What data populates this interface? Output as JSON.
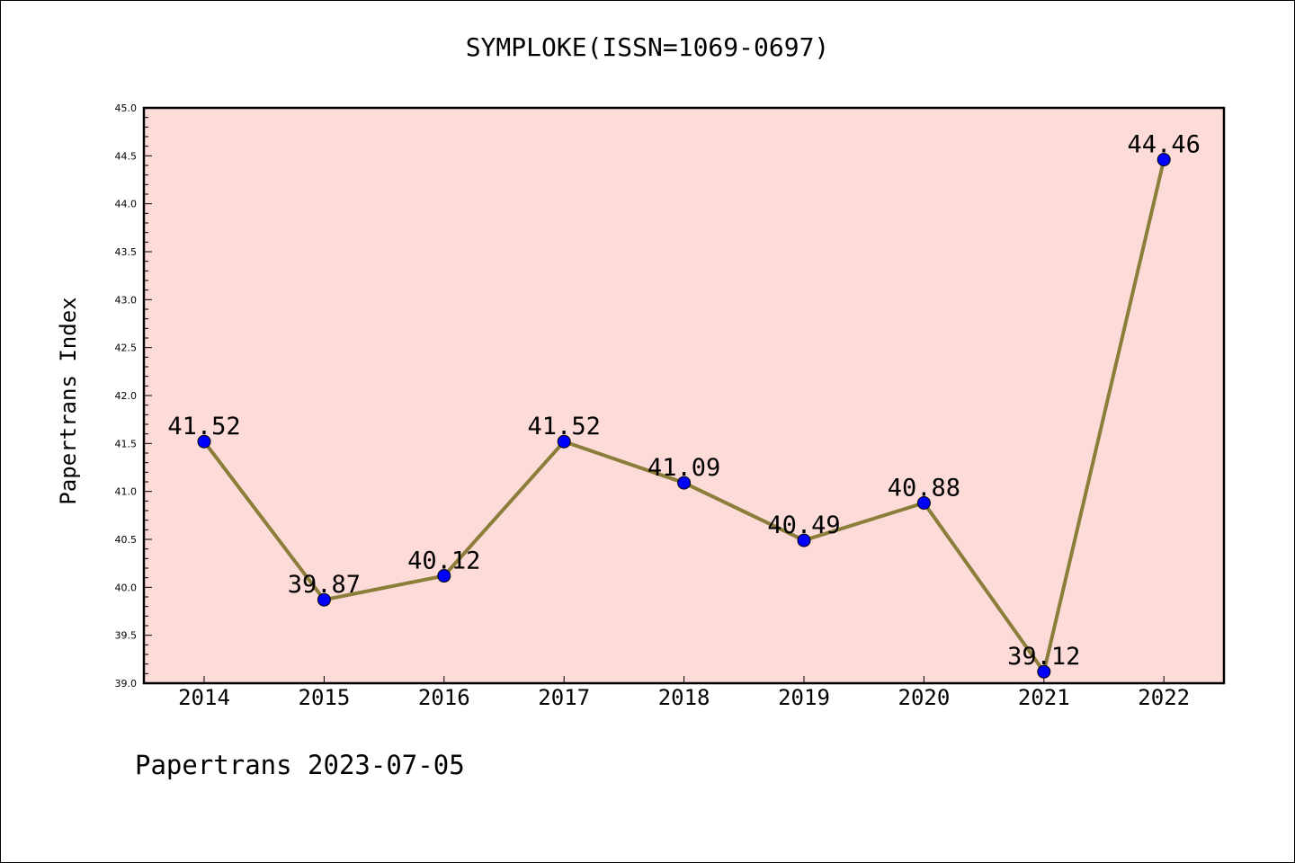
{
  "chart_data": {
    "type": "line",
    "title": "SYMPLOKE(ISSN=1069-0697)",
    "xlabel": "",
    "ylabel": "Papertrans Index",
    "categories": [
      "2014",
      "2015",
      "2016",
      "2017",
      "2018",
      "2019",
      "2020",
      "2021",
      "2022"
    ],
    "series": [
      {
        "values": [
          41.52,
          39.87,
          40.12,
          41.52,
          41.09,
          40.49,
          40.88,
          39.12,
          44.46
        ],
        "labels": [
          "41.52",
          "39.87",
          "40.12",
          "41.52",
          "41.09",
          "40.49",
          "40.88",
          "39.12",
          "44.46"
        ]
      }
    ],
    "ylim": [
      39.0,
      45.0
    ],
    "yticks": [
      "39.0",
      "39.5",
      "40.0",
      "40.5",
      "41.0",
      "41.5",
      "42.0",
      "42.5",
      "43.0",
      "43.5",
      "44.0",
      "44.5",
      "45.0"
    ],
    "grid": false,
    "legend": "none",
    "colors": {
      "plot_background": "#fddbd8",
      "line": "#8b7d3a",
      "marker": "#0000ff",
      "axis": "#000000"
    }
  },
  "footer": {
    "note": "Papertrans 2023-07-05"
  }
}
